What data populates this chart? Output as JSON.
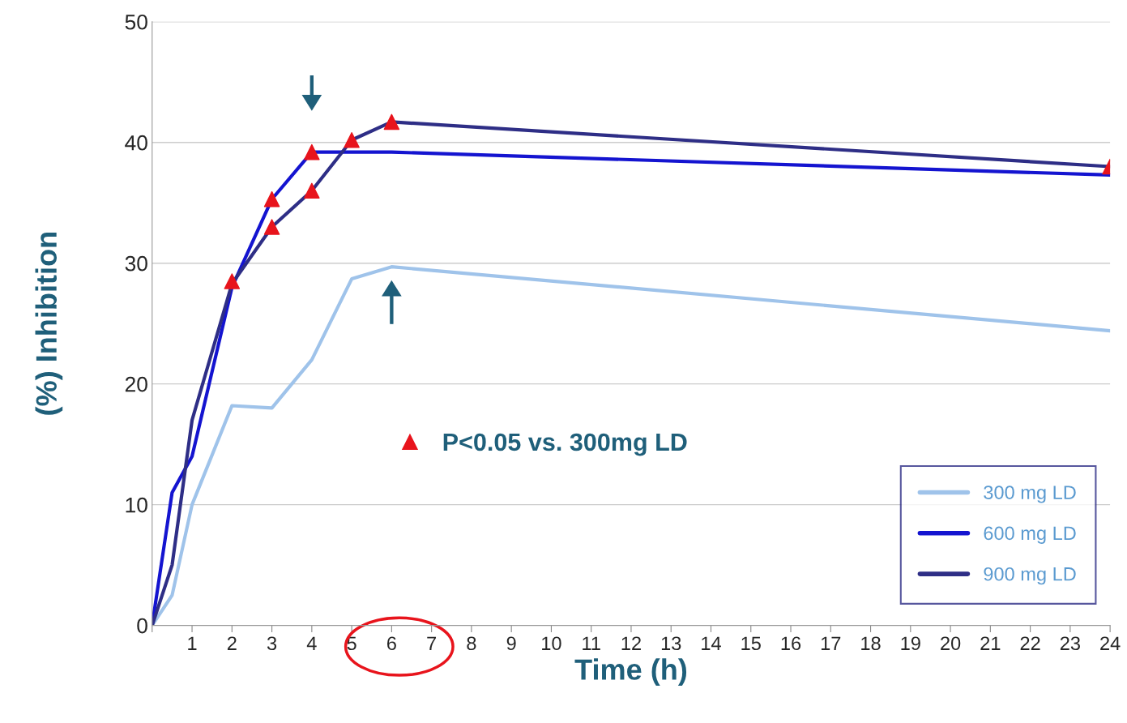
{
  "chart_data": {
    "type": "line",
    "xlabel": "Time (h)",
    "ylabel": "(%) Inhibition",
    "x": [
      0,
      0.5,
      1,
      2,
      3,
      4,
      5,
      6,
      24
    ],
    "series": [
      {
        "name": "300 mg LD",
        "color": "#9fc3ea",
        "values": [
          0,
          2.5,
          10,
          18.2,
          18,
          22,
          28.7,
          29.7,
          24.4
        ]
      },
      {
        "name": "600 mg LD",
        "color": "#1414d0",
        "values": [
          0,
          11,
          14,
          28,
          35.3,
          39.2,
          39.2,
          39.2,
          37.3
        ]
      },
      {
        "name": "900 mg LD",
        "color": "#2e2e86",
        "values": [
          0,
          5,
          17,
          28.3,
          33,
          36,
          40.2,
          41.7,
          38
        ]
      },
      {
        "name": "P<0.05 vs. 300mg LD",
        "type": "scatter",
        "marker": "triangle",
        "color": "#e8141c",
        "x": [
          2,
          3,
          4,
          3,
          4,
          5,
          6,
          24
        ],
        "values": [
          28.5,
          35.3,
          39.2,
          33,
          36,
          40.2,
          41.7,
          38
        ]
      }
    ],
    "xlim": [
      0,
      24
    ],
    "xticks": [
      {
        "value": 0,
        "label": null
      },
      1,
      2,
      3,
      4,
      5,
      6,
      7,
      8,
      9,
      10,
      11,
      12,
      13,
      14,
      15,
      16,
      17,
      18,
      19,
      20,
      21,
      22,
      23,
      24
    ],
    "ylim": [
      0,
      50
    ],
    "yticks": [
      0,
      10,
      20,
      30,
      40,
      50
    ],
    "grid": "y",
    "legend": "bottom right"
  }
}
